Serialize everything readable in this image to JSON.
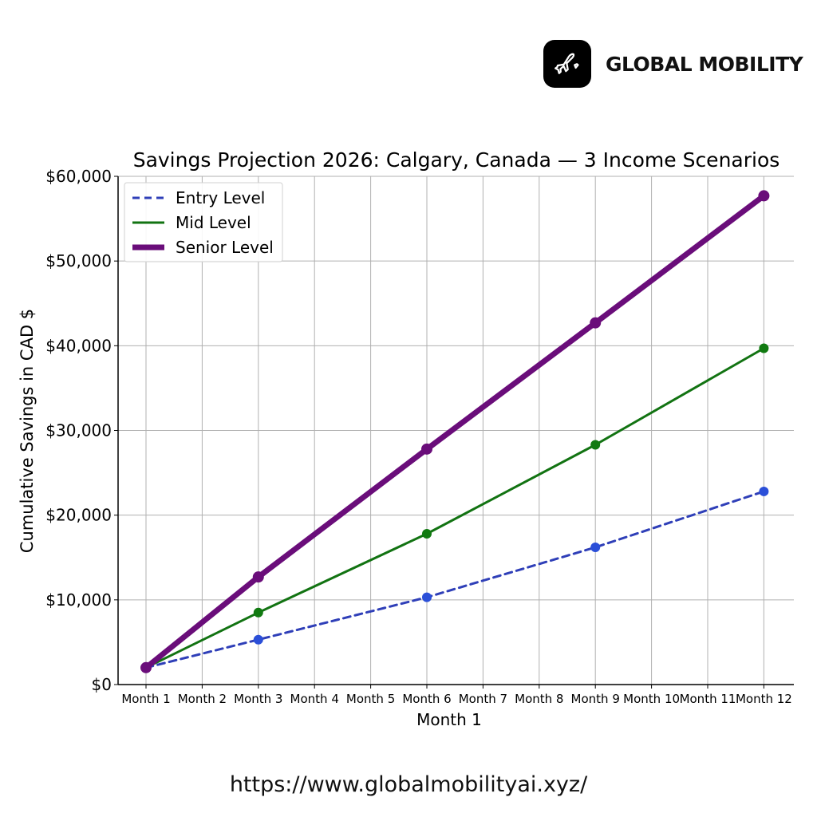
{
  "brand": {
    "name": "GLOBAL MOBILITY",
    "icon": "airplane-icon",
    "badge_color": "#000000"
  },
  "footer": {
    "url": "https://www.globalmobilityai.xyz/"
  },
  "chart_data": {
    "type": "line",
    "title": "Savings Projection 2026: Calgary, Canada — 3 Income Scenarios",
    "xlabel": "Month 1",
    "ylabel": "Cumulative Savings in CAD $",
    "categories": [
      "Month 1",
      "Month 2",
      "Month 3",
      "Month 4",
      "Month 5",
      "Month 6",
      "Month 7",
      "Month 8",
      "Month 9",
      "Month 10",
      "Month 11",
      "Month 12"
    ],
    "yticks": [
      {
        "value": 0,
        "label": "$0"
      },
      {
        "value": 10000,
        "label": "$10,000"
      },
      {
        "value": 20000,
        "label": "$20,000"
      },
      {
        "value": 30000,
        "label": "$30,000"
      },
      {
        "value": 40000,
        "label": "$40,000"
      },
      {
        "value": 50000,
        "label": "$50,000"
      },
      {
        "value": 60000,
        "label": "$60,000"
      }
    ],
    "ylim": [
      0,
      60000
    ],
    "grid": true,
    "legend_position": "top-left",
    "series": [
      {
        "name": "Entry Level",
        "color": "#2f3fb8",
        "marker_color": "#2b4fd8",
        "style": "dashed",
        "points": [
          {
            "month": "Month 1",
            "value": 2000
          },
          {
            "month": "Month 3",
            "value": 5300
          },
          {
            "month": "Month 6",
            "value": 10300
          },
          {
            "month": "Month 9",
            "value": 16200
          },
          {
            "month": "Month 12",
            "value": 22800
          }
        ]
      },
      {
        "name": "Mid Level",
        "color": "#127312",
        "marker_color": "#117a11",
        "style": "solid",
        "points": [
          {
            "month": "Month 1",
            "value": 2000
          },
          {
            "month": "Month 3",
            "value": 8500
          },
          {
            "month": "Month 6",
            "value": 17800
          },
          {
            "month": "Month 9",
            "value": 28300
          },
          {
            "month": "Month 12",
            "value": 39700
          }
        ]
      },
      {
        "name": "Senior Level",
        "color": "#6a0d7a",
        "marker_color": "#6a0d7a",
        "style": "thick",
        "points": [
          {
            "month": "Month 1",
            "value": 2000
          },
          {
            "month": "Month 3",
            "value": 12700
          },
          {
            "month": "Month 6",
            "value": 27800
          },
          {
            "month": "Month 9",
            "value": 42700
          },
          {
            "month": "Month 12",
            "value": 57700
          }
        ]
      }
    ]
  }
}
